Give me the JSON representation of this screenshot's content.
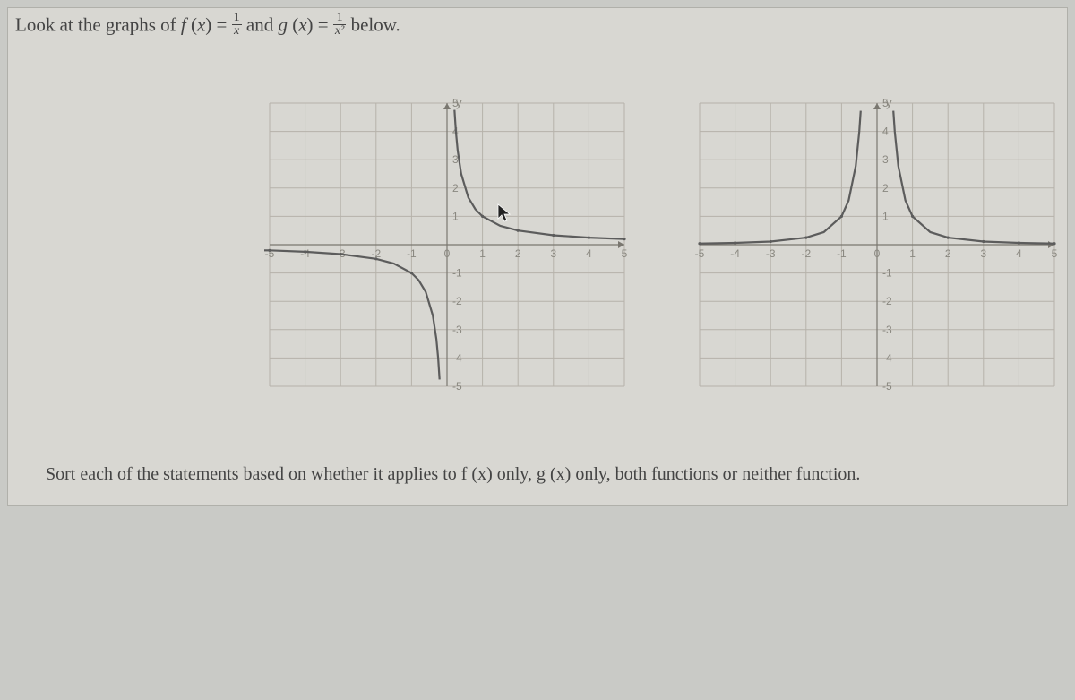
{
  "intro": {
    "pre": "Look at the graphs of ",
    "f_sym": "f",
    "g_sym": "g",
    "x_sym": "x",
    "eq": " = ",
    "and": " and ",
    "frac1_num": "1",
    "frac1_den": "x",
    "frac2_num": "1",
    "frac2_den": "x²",
    "post": " below."
  },
  "bottom": "Sort each of the statements based on whether it applies to f (x) only, g (x) only, both functions or neither function.",
  "plot_style": {
    "panel_bg": "#d8d7d2",
    "grid_color": "#b6b2aa",
    "grid_width": 1,
    "axis_color": "#7a7770",
    "curve_color": "#5c5c5c",
    "curve_width": 2.2,
    "tick_font_size": 12,
    "tick_color": "#8a8880",
    "y_axis_label": "y"
  },
  "left_plot": {
    "type": "line",
    "function": "1/x",
    "xlim": [
      -5,
      5
    ],
    "ylim": [
      -5,
      5
    ],
    "x_ticks": [
      -5,
      -4,
      -3,
      -2,
      -1,
      0,
      1,
      2,
      3,
      4,
      5
    ],
    "y_ticks": [
      -5,
      -4,
      -3,
      -2,
      -1,
      0,
      1,
      2,
      3,
      4,
      5
    ],
    "branches": [
      {
        "x": [
          -5,
          -4,
          -3,
          -2,
          -1.5,
          -1,
          -0.8,
          -0.6,
          -0.4,
          -0.3,
          -0.25,
          -0.21
        ],
        "y": [
          -0.2,
          -0.25,
          -0.333,
          -0.5,
          -0.667,
          -1,
          -1.25,
          -1.667,
          -2.5,
          -3.333,
          -4,
          -4.76
        ]
      },
      {
        "x": [
          0.21,
          0.25,
          0.3,
          0.4,
          0.6,
          0.8,
          1,
          1.5,
          2,
          3,
          4,
          5
        ],
        "y": [
          4.76,
          4,
          3.333,
          2.5,
          1.667,
          1.25,
          1,
          0.667,
          0.5,
          0.333,
          0.25,
          0.2
        ]
      }
    ],
    "scatter": {
      "x": [
        -5,
        -4,
        -3,
        -2,
        -1,
        1,
        2,
        3,
        4,
        5
      ],
      "y": [
        -0.2,
        -0.25,
        -0.333,
        -0.5,
        -1,
        1,
        0.5,
        0.333,
        0.25,
        0.2
      ]
    }
  },
  "right_plot": {
    "type": "line",
    "function": "1/x^2",
    "xlim": [
      -5,
      5
    ],
    "ylim": [
      -5,
      5
    ],
    "x_ticks": [
      -5,
      -4,
      -3,
      -2,
      -1,
      0,
      1,
      2,
      3,
      4,
      5
    ],
    "y_ticks": [
      -5,
      -4,
      -3,
      -2,
      -1,
      0,
      1,
      2,
      3,
      4,
      5
    ],
    "branches": [
      {
        "x": [
          -5,
          -4,
          -3,
          -2,
          -1.5,
          -1,
          -0.8,
          -0.6,
          -0.5,
          -0.46
        ],
        "y": [
          0.04,
          0.0625,
          0.111,
          0.25,
          0.444,
          1,
          1.5625,
          2.778,
          4,
          4.73
        ]
      },
      {
        "x": [
          0.46,
          0.5,
          0.6,
          0.8,
          1,
          1.5,
          2,
          3,
          4,
          5
        ],
        "y": [
          4.73,
          4,
          2.778,
          1.5625,
          1,
          0.444,
          0.25,
          0.111,
          0.0625,
          0.04
        ]
      }
    ],
    "scatter": {
      "x": [
        -5,
        -4,
        -3,
        -2,
        -1,
        1,
        2,
        3,
        4,
        5
      ],
      "y": [
        0.04,
        0.0625,
        0.111,
        0.25,
        1,
        1,
        0.25,
        0.111,
        0.0625,
        0.04
      ]
    }
  }
}
